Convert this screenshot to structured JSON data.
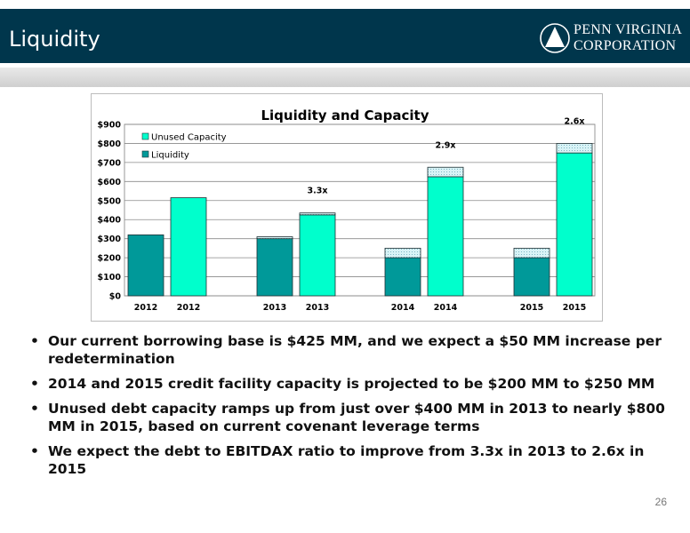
{
  "slide": {
    "title": "Liquidity",
    "page_number": "26",
    "logo": {
      "line1": "PENN VIRGINIA",
      "line2": "CORPORATION"
    },
    "bullets": [
      "Our current borrowing base is $425 MM, and we expect a $50 MM increase per redetermination",
      "2014 and 2015 credit facility capacity is projected to be $200 MM to $250 MM",
      "Unused debt capacity ramps up from just over $400 MM in 2013 to nearly $800 MM in 2015, based on current covenant leverage terms",
      "We expect the debt to EBITDAX ratio to improve from 3.3x in 2013 to 2.6x in 2015"
    ]
  },
  "colors": {
    "header": "#00364c",
    "liquidity": "#009999",
    "unused": "#00ffcc",
    "range": "#d4f0f4"
  },
  "chart_data": {
    "type": "bar",
    "title": "Liquidity and Capacity",
    "ylim": [
      0,
      900
    ],
    "yticks": [
      "$0",
      "$100",
      "$200",
      "$300",
      "$400",
      "$500",
      "$600",
      "$700",
      "$800",
      "$900"
    ],
    "grid": true,
    "legend_position": "top-left",
    "legend": [
      "Unused Capacity",
      "Liquidity"
    ],
    "groups": [
      {
        "bars": [
          {
            "label": "2012",
            "series": "Liquidity",
            "value": 320,
            "range_top": 320
          },
          {
            "label": "2012",
            "series": "Unused Capacity",
            "value": 515,
            "range_top": 515
          }
        ],
        "annotation": ""
      },
      {
        "bars": [
          {
            "label": "2013",
            "series": "Liquidity",
            "value": 300,
            "range_top": 310
          },
          {
            "label": "2013",
            "series": "Unused Capacity",
            "value": 425,
            "range_top": 435
          }
        ],
        "annotation": "3.3x"
      },
      {
        "bars": [
          {
            "label": "2014",
            "series": "Liquidity",
            "value": 200,
            "range_top": 250
          },
          {
            "label": "2014",
            "series": "Unused Capacity",
            "value": 625,
            "range_top": 675
          }
        ],
        "annotation": "2.9x"
      },
      {
        "bars": [
          {
            "label": "2015",
            "series": "Liquidity",
            "value": 200,
            "range_top": 250
          },
          {
            "label": "2015",
            "series": "Unused Capacity",
            "value": 750,
            "range_top": 800
          }
        ],
        "annotation": "2.6x"
      }
    ]
  }
}
